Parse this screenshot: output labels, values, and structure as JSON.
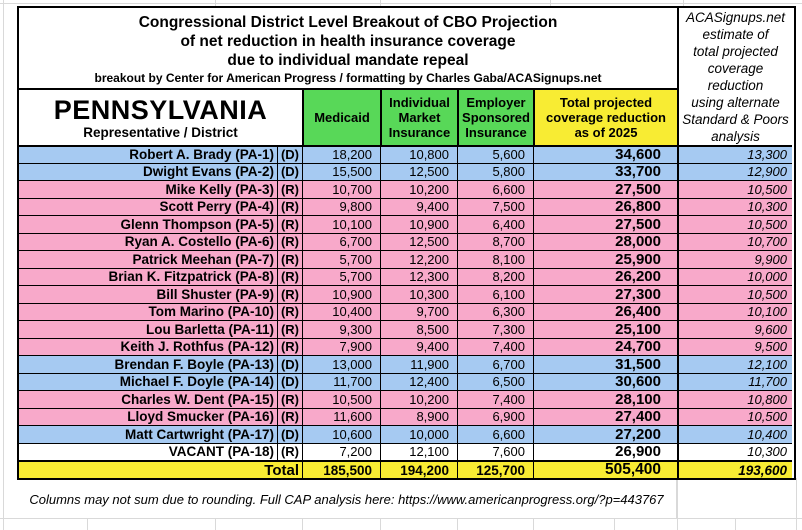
{
  "palette": {
    "blue": "#A6CAF2",
    "pink": "#F8A9CA",
    "white": "#FFFFFF",
    "green": "#58D858",
    "yellow": "#F8EC33",
    "border": "#000000",
    "gridline": "#D9D9D9"
  },
  "title": {
    "line1": "Congressional District Level Breakout of CBO Projection",
    "line2": "of net reduction in health insurance coverage",
    "line3": "due to individual mandate repeal",
    "byline": "breakout by Center for American Progress / formatting by Charles Gaba/ACASignups.net"
  },
  "side_header": "ACASignups.net\nestimate of\ntotal projected\ncoverage reduction\nusing alternate\nStandard & Poors\nanalysis",
  "columns": {
    "state": "PENNSYLVANIA",
    "state_sub": "Representative / District",
    "medicaid": "Medicaid",
    "individual": "Individual\nMarket\nInsurance",
    "employer": "Employer\nSponsored\nInsurance",
    "total": "Total projected\ncoverage reduction\nas of 2025"
  },
  "rows": [
    {
      "name": "Robert A. Brady (PA-1)",
      "party": "(D)",
      "highlight": "blue",
      "medicaid": "18,200",
      "individual": "10,800",
      "employer": "5,600",
      "total": "34,600",
      "sp": "13,300"
    },
    {
      "name": "Dwight Evans (PA-2)",
      "party": "(D)",
      "highlight": "blue",
      "medicaid": "15,500",
      "individual": "12,500",
      "employer": "5,800",
      "total": "33,700",
      "sp": "12,900"
    },
    {
      "name": "Mike Kelly (PA-3)",
      "party": "(R)",
      "highlight": "pink",
      "medicaid": "10,700",
      "individual": "10,200",
      "employer": "6,600",
      "total": "27,500",
      "sp": "10,500"
    },
    {
      "name": "Scott Perry (PA-4)",
      "party": "(R)",
      "highlight": "pink",
      "medicaid": "9,800",
      "individual": "9,400",
      "employer": "7,500",
      "total": "26,800",
      "sp": "10,300"
    },
    {
      "name": "Glenn Thompson (PA-5)",
      "party": "(R)",
      "highlight": "pink",
      "medicaid": "10,100",
      "individual": "10,900",
      "employer": "6,400",
      "total": "27,500",
      "sp": "10,500"
    },
    {
      "name": "Ryan A. Costello (PA-6)",
      "party": "(R)",
      "highlight": "pink",
      "medicaid": "6,700",
      "individual": "12,500",
      "employer": "8,700",
      "total": "28,000",
      "sp": "10,700"
    },
    {
      "name": "Patrick Meehan (PA-7)",
      "party": "(R)",
      "highlight": "pink",
      "medicaid": "5,700",
      "individual": "12,200",
      "employer": "8,100",
      "total": "25,900",
      "sp": "9,900"
    },
    {
      "name": "Brian K. Fitzpatrick (PA-8)",
      "party": "(R)",
      "highlight": "pink",
      "medicaid": "5,700",
      "individual": "12,300",
      "employer": "8,200",
      "total": "26,200",
      "sp": "10,000"
    },
    {
      "name": "Bill Shuster (PA-9)",
      "party": "(R)",
      "highlight": "pink",
      "medicaid": "10,900",
      "individual": "10,300",
      "employer": "6,100",
      "total": "27,300",
      "sp": "10,500"
    },
    {
      "name": "Tom Marino (PA-10)",
      "party": "(R)",
      "highlight": "pink",
      "medicaid": "10,400",
      "individual": "9,700",
      "employer": "6,300",
      "total": "26,400",
      "sp": "10,100"
    },
    {
      "name": "Lou Barletta (PA-11)",
      "party": "(R)",
      "highlight": "pink",
      "medicaid": "9,300",
      "individual": "8,500",
      "employer": "7,300",
      "total": "25,100",
      "sp": "9,600"
    },
    {
      "name": "Keith J. Rothfus (PA-12)",
      "party": "(R)",
      "highlight": "pink",
      "medicaid": "7,900",
      "individual": "9,400",
      "employer": "7,400",
      "total": "24,700",
      "sp": "9,500"
    },
    {
      "name": "Brendan F. Boyle (PA-13)",
      "party": "(D)",
      "highlight": "blue",
      "medicaid": "13,000",
      "individual": "11,900",
      "employer": "6,700",
      "total": "31,500",
      "sp": "12,100"
    },
    {
      "name": "Michael F. Doyle (PA-14)",
      "party": "(D)",
      "highlight": "blue",
      "medicaid": "11,700",
      "individual": "12,400",
      "employer": "6,500",
      "total": "30,600",
      "sp": "11,700"
    },
    {
      "name": "Charles W. Dent (PA-15)",
      "party": "(R)",
      "highlight": "pink",
      "medicaid": "10,500",
      "individual": "10,200",
      "employer": "7,400",
      "total": "28,100",
      "sp": "10,800"
    },
    {
      "name": "Lloyd Smucker (PA-16)",
      "party": "(R)",
      "highlight": "pink",
      "medicaid": "11,600",
      "individual": "8,900",
      "employer": "6,900",
      "total": "27,400",
      "sp": "10,500"
    },
    {
      "name": "Matt Cartwright (PA-17)",
      "party": "(D)",
      "highlight": "blue",
      "medicaid": "10,600",
      "individual": "10,000",
      "employer": "6,600",
      "total": "27,200",
      "sp": "10,400"
    },
    {
      "name": "VACANT (PA-18)",
      "party": "(R)",
      "highlight": "white",
      "medicaid": "7,200",
      "individual": "12,100",
      "employer": "7,600",
      "total": "26,900",
      "sp": "10,300"
    }
  ],
  "total_row": {
    "label": "Total",
    "medicaid": "185,500",
    "individual": "194,200",
    "employer": "125,700",
    "total": "505,400",
    "sp": "193,600"
  },
  "footnote": "Columns may not sum due to rounding. Full CAP analysis here: https://www.americanprogress.org/?p=443767"
}
